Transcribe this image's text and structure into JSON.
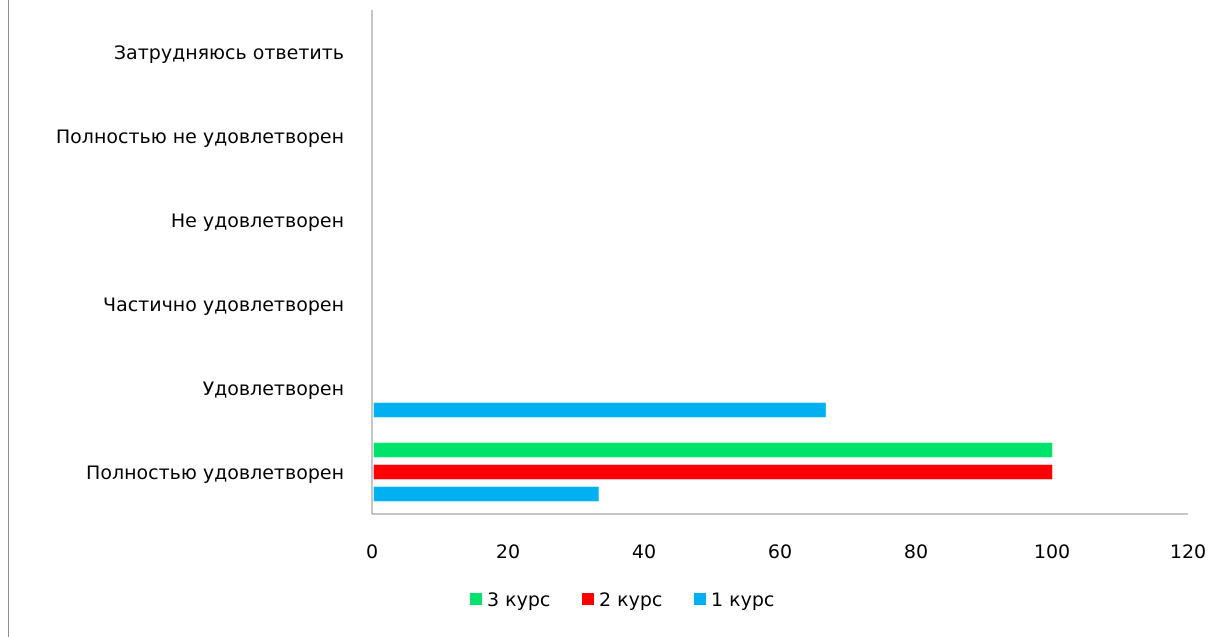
{
  "chart_data": {
    "type": "bar",
    "orientation": "horizontal",
    "categories": [
      "Полностью удовлетворен",
      "Удовлетворен",
      "Частично удовлетворен",
      "Не удовлетворен",
      "Полностью не удовлетворен",
      "Затрудняюсь ответить"
    ],
    "series": [
      {
        "name": "1 курс",
        "color": "#00b0f0",
        "values": [
          33.3,
          66.7,
          0,
          0,
          0,
          0
        ]
      },
      {
        "name": "2 курс",
        "color": "#ff0000",
        "values": [
          100,
          0,
          0,
          0,
          0,
          0
        ]
      },
      {
        "name": "3 курс",
        "color": "#00e36a",
        "values": [
          100,
          0,
          0,
          0,
          0,
          0
        ]
      }
    ],
    "xlim": [
      0,
      120
    ],
    "xticks": [
      0,
      20,
      40,
      60,
      80,
      100,
      120
    ],
    "legend": "bottom",
    "grid": false
  }
}
